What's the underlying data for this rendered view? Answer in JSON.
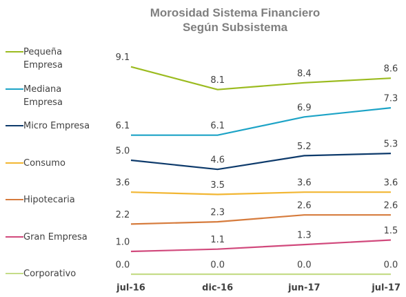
{
  "chart_data": {
    "type": "line",
    "title": "Morosidad Sistema Financiero Según Subsistema",
    "categories": [
      "jul-16",
      "dic-16",
      "jun-17",
      "jul-17"
    ],
    "ylim": [
      0,
      10
    ],
    "series": [
      {
        "name": "Pequeña Empresa",
        "color": "#9bbb1f",
        "values": [
          9.1,
          8.1,
          8.4,
          8.6
        ],
        "value_labels": [
          "9.1",
          "8.1",
          "8.4",
          "8.6"
        ]
      },
      {
        "name": "Mediana Empresa",
        "color": "#1ca3c6",
        "values": [
          6.1,
          6.1,
          6.9,
          7.3
        ],
        "value_labels": [
          "6.1",
          "6.1",
          "6.9",
          "7.3"
        ]
      },
      {
        "name": "Micro Empresa",
        "color": "#0d3a6b",
        "values": [
          5.0,
          4.6,
          5.2,
          5.3
        ],
        "value_labels": [
          "5.0",
          "4.6",
          "5.2",
          "5.3"
        ]
      },
      {
        "name": "Consumo",
        "color": "#f2b632",
        "values": [
          3.6,
          3.5,
          3.6,
          3.6
        ],
        "value_labels": [
          "3.6",
          "3.5",
          "3.6",
          "3.6"
        ]
      },
      {
        "name": "Hipotecaria",
        "color": "#d67b3c",
        "values": [
          2.2,
          2.3,
          2.6,
          2.6
        ],
        "value_labels": [
          "2.2",
          "2.3",
          "2.6",
          "2.6"
        ]
      },
      {
        "name": "Gran Empresa",
        "color": "#d1497c",
        "values": [
          1.0,
          1.1,
          1.3,
          1.5
        ],
        "value_labels": [
          "1.0",
          "1.1",
          "1.3",
          "1.5"
        ]
      },
      {
        "name": "Corporativo",
        "color": "#c5dc88",
        "values": [
          0.0,
          0.0,
          0.0,
          0.0
        ],
        "value_labels": [
          "0.0",
          "0.0",
          "0.0",
          "0.0"
        ]
      }
    ]
  }
}
